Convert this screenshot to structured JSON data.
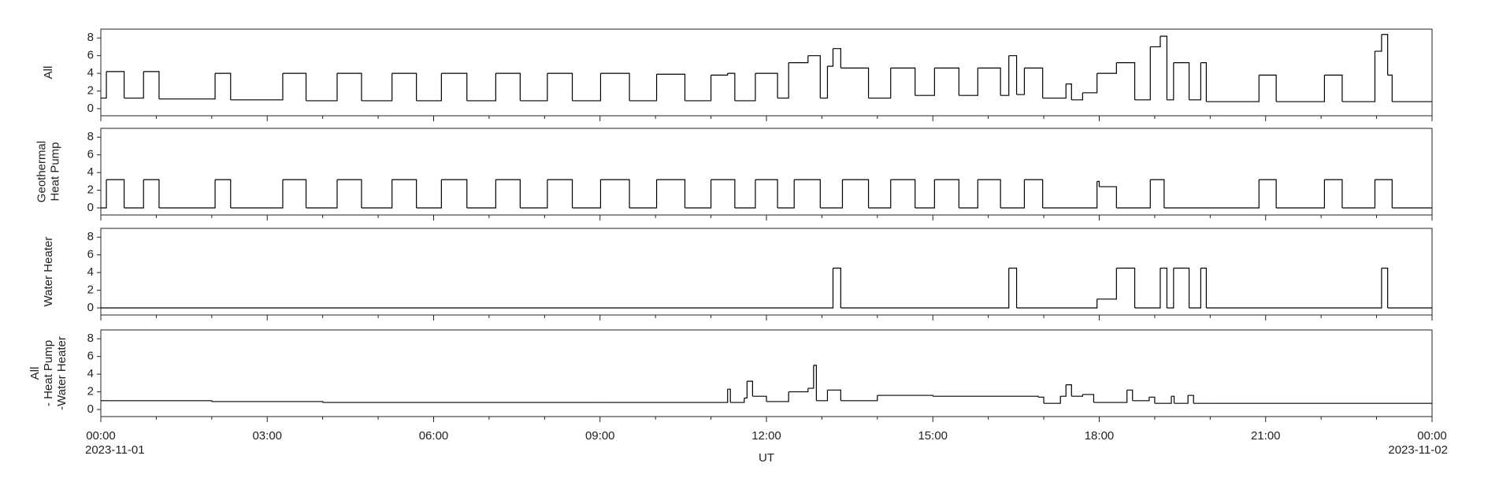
{
  "chart_data": [
    {
      "type": "line",
      "drawstyle": "steps-post",
      "color": "#000000",
      "ylabel": [
        "All"
      ],
      "ylim": [
        -0.8,
        9
      ],
      "yticks": [
        0,
        2,
        4,
        6,
        8
      ],
      "xlim": [
        0,
        24
      ],
      "x": [
        0,
        0.1,
        0.42,
        0.77,
        1.05,
        2.06,
        2.34,
        3.28,
        3.7,
        4.26,
        4.7,
        5.25,
        5.69,
        6.14,
        6.6,
        7.12,
        7.56,
        8.05,
        8.5,
        9.01,
        9.53,
        10.02,
        10.53,
        11.0,
        11.3,
        11.43,
        11.8,
        12.2,
        12.4,
        12.75,
        12.97,
        13.1,
        13.2,
        13.34,
        13.84,
        14.24,
        14.68,
        15.03,
        15.47,
        15.81,
        16.22,
        16.37,
        16.51,
        16.65,
        16.98,
        17.4,
        17.5,
        17.7,
        17.96,
        18.31,
        18.64,
        18.92,
        19.1,
        19.22,
        19.34,
        19.62,
        19.83,
        19.93,
        20.88,
        21.19,
        22.06,
        22.38,
        22.97,
        23.09,
        23.2,
        23.28,
        24
      ],
      "values": [
        1.2,
        4.2,
        1.2,
        4.2,
        1.1,
        4.0,
        1.0,
        4.0,
        0.9,
        4.0,
        0.9,
        4.0,
        0.9,
        4.0,
        0.9,
        4.0,
        0.9,
        4.0,
        0.9,
        4.0,
        0.9,
        3.9,
        0.9,
        3.8,
        4.0,
        0.9,
        4.0,
        1.2,
        5.2,
        6.0,
        1.2,
        4.8,
        6.8,
        4.6,
        1.2,
        4.6,
        1.5,
        4.6,
        1.5,
        4.6,
        1.5,
        6.0,
        1.6,
        4.6,
        1.2,
        2.8,
        1.0,
        1.8,
        4.0,
        5.2,
        1.0,
        7.0,
        8.2,
        1.0,
        5.2,
        1.0,
        5.2,
        0.8,
        3.8,
        0.8,
        3.8,
        0.8,
        6.5,
        8.4,
        3.8,
        0.8,
        0.8
      ]
    },
    {
      "type": "line",
      "drawstyle": "steps-post",
      "color": "#000000",
      "ylabel": [
        "Geothermal",
        "Heat Pump"
      ],
      "ylim": [
        -0.8,
        9
      ],
      "yticks": [
        0,
        2,
        4,
        6,
        8
      ],
      "xlim": [
        0,
        24
      ],
      "x": [
        0,
        0.1,
        0.42,
        0.77,
        1.05,
        2.06,
        2.34,
        3.28,
        3.7,
        4.26,
        4.7,
        5.25,
        5.69,
        6.14,
        6.6,
        7.12,
        7.56,
        8.05,
        8.5,
        9.01,
        9.53,
        10.02,
        10.53,
        11.0,
        11.43,
        11.8,
        12.2,
        12.5,
        12.97,
        13.37,
        13.84,
        14.24,
        14.68,
        15.03,
        15.47,
        15.81,
        16.22,
        16.65,
        16.98,
        17.96,
        18.0,
        18.31,
        18.92,
        19.17,
        20.88,
        21.19,
        22.06,
        22.38,
        22.97,
        23.28,
        24
      ],
      "values": [
        0,
        3.2,
        0,
        3.2,
        0,
        3.2,
        0,
        3.2,
        0,
        3.2,
        0,
        3.2,
        0,
        3.2,
        0,
        3.2,
        0,
        3.2,
        0,
        3.2,
        0,
        3.2,
        0,
        3.2,
        0,
        3.2,
        0,
        3.2,
        0,
        3.2,
        0,
        3.2,
        0,
        3.2,
        0,
        3.2,
        0,
        3.2,
        0,
        3.0,
        2.4,
        0,
        3.2,
        0,
        3.2,
        0,
        3.2,
        0,
        3.2,
        0,
        0
      ]
    },
    {
      "type": "line",
      "drawstyle": "steps-post",
      "color": "#000000",
      "ylabel": [
        "Water Heater"
      ],
      "ylim": [
        -0.8,
        9
      ],
      "yticks": [
        0,
        2,
        4,
        6,
        8
      ],
      "xlim": [
        0,
        24
      ],
      "x": [
        0,
        13.2,
        13.34,
        16.37,
        16.51,
        17.96,
        18.31,
        18.64,
        19.1,
        19.22,
        19.34,
        19.62,
        19.83,
        19.93,
        23.09,
        23.2,
        24
      ],
      "values": [
        0,
        4.5,
        0,
        4.5,
        0,
        1.0,
        4.5,
        0,
        4.5,
        0,
        4.5,
        0,
        4.5,
        0,
        4.5,
        0,
        0
      ]
    },
    {
      "type": "line",
      "drawstyle": "steps-post",
      "color": "#000000",
      "ylabel": [
        "All",
        "- Heat Pump",
        "-Water Heater"
      ],
      "ylim": [
        -0.8,
        9
      ],
      "yticks": [
        0,
        2,
        4,
        6,
        8
      ],
      "xlim": [
        0,
        24
      ],
      "x": [
        0,
        2,
        4,
        9,
        11.3,
        11.35,
        11.6,
        11.65,
        11.75,
        12.0,
        12.4,
        12.75,
        12.85,
        12.9,
        13.1,
        13.34,
        14.0,
        15.0,
        16.9,
        17.0,
        17.3,
        17.4,
        17.5,
        17.7,
        17.9,
        18.5,
        18.6,
        18.9,
        19.0,
        19.3,
        19.35,
        19.6,
        19.7,
        20.0,
        24
      ],
      "values": [
        1.0,
        0.9,
        0.8,
        0.8,
        2.3,
        0.8,
        1.3,
        3.2,
        1.5,
        0.9,
        2.0,
        2.4,
        5.0,
        1.0,
        2.2,
        1.0,
        1.6,
        1.5,
        1.4,
        0.7,
        1.5,
        2.8,
        1.5,
        1.7,
        0.8,
        2.2,
        1.0,
        1.4,
        0.7,
        1.5,
        0.7,
        1.6,
        0.7,
        0.7,
        0.7
      ],
      "xlabel": "UT",
      "xticks": [
        {
          "value": 0,
          "label": "00:00"
        },
        {
          "value": 3,
          "label": "03:00"
        },
        {
          "value": 6,
          "label": "06:00"
        },
        {
          "value": 9,
          "label": "09:00"
        },
        {
          "value": 12,
          "label": "12:00"
        },
        {
          "value": 15,
          "label": "15:00"
        },
        {
          "value": 18,
          "label": "18:00"
        },
        {
          "value": 21,
          "label": "21:00"
        },
        {
          "value": 24,
          "label": "00:00"
        }
      ],
      "xminorticks": [
        1,
        2,
        4,
        5,
        7,
        8,
        10,
        11,
        13,
        14,
        16,
        17,
        19,
        20,
        22,
        23
      ],
      "xlim_dates": [
        "2023-11-01",
        "2023-11-02"
      ]
    }
  ]
}
